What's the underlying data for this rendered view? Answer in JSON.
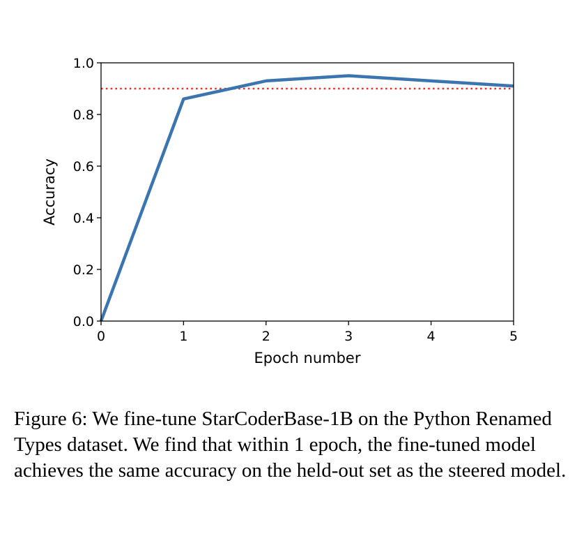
{
  "chart_data": {
    "type": "line",
    "xlabel": "Epoch number",
    "ylabel": "Accuracy",
    "xlim": [
      0,
      5
    ],
    "ylim": [
      0,
      1.0
    ],
    "xticks": [
      "0",
      "1",
      "2",
      "3",
      "4",
      "5"
    ],
    "yticks": [
      "0.0",
      "0.2",
      "0.4",
      "0.6",
      "0.8",
      "1.0"
    ],
    "grid": false,
    "series": [
      {
        "x": [
          0,
          1,
          2,
          3,
          4,
          5
        ],
        "y": [
          0.0,
          0.86,
          0.93,
          0.95,
          0.93,
          0.91
        ],
        "color": "#3b75af",
        "style": "solid"
      }
    ],
    "reference_lines": [
      {
        "orientation": "horizontal",
        "y": 0.9,
        "color": "#e8322b",
        "style": "dotted"
      }
    ]
  },
  "caption": "Figure 6: We fine-tune StarCoderBase-1B on the Python Renamed Types dataset. We find that within 1 epoch, the fine-tuned model achieves the same accuracy on the held-out set as the steered model."
}
